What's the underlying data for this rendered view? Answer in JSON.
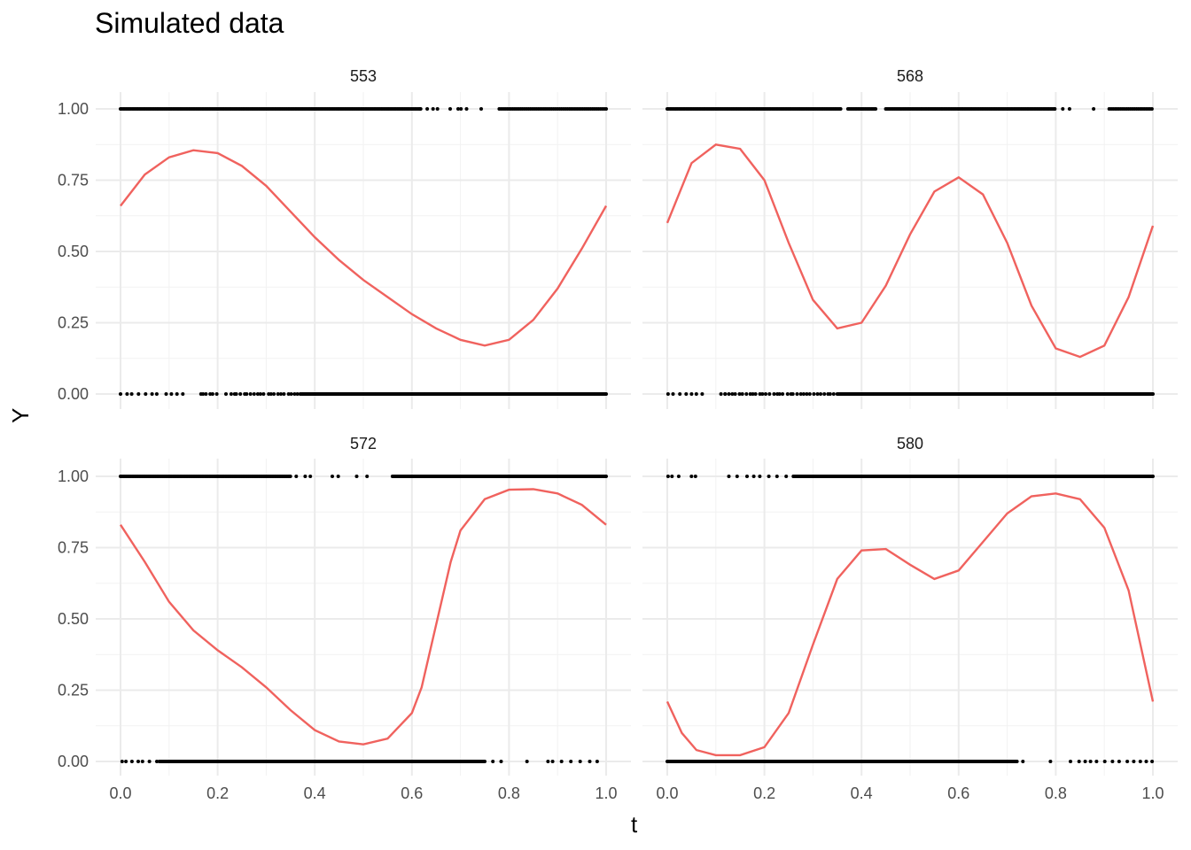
{
  "title": "Simulated data",
  "chart_data": {
    "type": "line",
    "title": "Simulated data",
    "xlabel": "t",
    "ylabel": "Y",
    "xlim": [
      0,
      1
    ],
    "ylim": [
      0,
      1
    ],
    "xticks": [
      "0.0",
      "0.2",
      "0.4",
      "0.6",
      "0.8",
      "1.0"
    ],
    "yticks": [
      "0.00",
      "0.25",
      "0.50",
      "0.75",
      "1.00"
    ],
    "grid": true,
    "curve_color": "#f0625e",
    "point_color": "#000000",
    "panels": [
      {
        "label": "553",
        "curve": {
          "x": [
            0,
            0.05,
            0.1,
            0.15,
            0.2,
            0.25,
            0.3,
            0.35,
            0.4,
            0.45,
            0.5,
            0.55,
            0.6,
            0.65,
            0.7,
            0.75,
            0.8,
            0.85,
            0.9,
            0.95,
            1.0
          ],
          "y": [
            0.66,
            0.77,
            0.83,
            0.855,
            0.845,
            0.8,
            0.73,
            0.64,
            0.55,
            0.47,
            0.4,
            0.34,
            0.28,
            0.23,
            0.19,
            0.17,
            0.19,
            0.26,
            0.37,
            0.51,
            0.66
          ]
        },
        "points": [
          {
            "y": 1,
            "ranges": [
              [
                0.0,
                0.62,
                0.003
              ],
              [
                0.62,
                0.75,
                0.012
              ],
              [
                0.78,
                1.0,
                0.004
              ]
            ],
            "gaps": [
              [
                0.66,
                0.67
              ],
              [
                0.72,
                0.735
              ],
              [
                0.75,
                0.78
              ]
            ]
          },
          {
            "y": 0,
            "ranges": [
              [
                0.0,
                0.17,
                0.013
              ],
              [
                0.17,
                0.37,
                0.007
              ],
              [
                0.37,
                1.0,
                0.002
              ]
            ],
            "gaps": [
              [
                0.14,
                0.165
              ],
              [
                0.2,
                0.215
              ]
            ]
          }
        ]
      },
      {
        "label": "568",
        "curve": {
          "x": [
            0,
            0.05,
            0.1,
            0.15,
            0.2,
            0.25,
            0.3,
            0.35,
            0.4,
            0.45,
            0.5,
            0.55,
            0.6,
            0.65,
            0.7,
            0.75,
            0.8,
            0.85,
            0.9,
            0.95,
            1.0
          ],
          "y": [
            0.6,
            0.81,
            0.875,
            0.86,
            0.75,
            0.53,
            0.33,
            0.23,
            0.25,
            0.38,
            0.56,
            0.71,
            0.76,
            0.7,
            0.53,
            0.31,
            0.16,
            0.13,
            0.17,
            0.34,
            0.59
          ]
        },
        "points": [
          {
            "y": 1,
            "ranges": [
              [
                0.0,
                0.8,
                0.003
              ],
              [
                0.8,
                0.91,
                0.016
              ],
              [
                0.91,
                1.0,
                0.004
              ]
            ],
            "gaps": [
              [
                0.36,
                0.37
              ],
              [
                0.43,
                0.45
              ],
              [
                0.84,
                0.86
              ],
              [
                0.89,
                0.91
              ]
            ]
          },
          {
            "y": 0,
            "ranges": [
              [
                0.0,
                0.12,
                0.012
              ],
              [
                0.12,
                0.35,
                0.007
              ],
              [
                0.35,
                1.0,
                0.002
              ]
            ],
            "gaps": [
              [
                0.08,
                0.1
              ]
            ]
          }
        ]
      },
      {
        "label": "572",
        "curve": {
          "x": [
            0,
            0.05,
            0.1,
            0.15,
            0.2,
            0.25,
            0.3,
            0.35,
            0.4,
            0.45,
            0.5,
            0.55,
            0.6,
            0.62,
            0.65,
            0.68,
            0.7,
            0.75,
            0.8,
            0.85,
            0.9,
            0.95,
            1.0
          ],
          "y": [
            0.83,
            0.7,
            0.56,
            0.46,
            0.39,
            0.33,
            0.26,
            0.18,
            0.11,
            0.07,
            0.06,
            0.08,
            0.17,
            0.26,
            0.48,
            0.7,
            0.81,
            0.92,
            0.953,
            0.955,
            0.94,
            0.9,
            0.83
          ]
        },
        "points": [
          {
            "y": 1,
            "ranges": [
              [
                0.0,
                0.35,
                0.003
              ],
              [
                0.35,
                0.52,
                0.014
              ],
              [
                0.56,
                1.0,
                0.002
              ]
            ],
            "gaps": [
              [
                0.4,
                0.42
              ],
              [
                0.45,
                0.48
              ],
              [
                0.51,
                0.56
              ]
            ]
          },
          {
            "y": 0,
            "ranges": [
              [
                0.0,
                0.08,
                0.012
              ],
              [
                0.08,
                0.75,
                0.002
              ],
              [
                0.75,
                1.0,
                0.018
              ]
            ],
            "gaps": [
              [
                0.8,
                0.83
              ],
              [
                0.84,
                0.88
              ]
            ]
          }
        ]
      },
      {
        "label": "580",
        "curve": {
          "x": [
            0,
            0.03,
            0.06,
            0.1,
            0.15,
            0.2,
            0.25,
            0.3,
            0.35,
            0.4,
            0.45,
            0.5,
            0.55,
            0.6,
            0.65,
            0.7,
            0.75,
            0.8,
            0.85,
            0.9,
            0.95,
            1.0
          ],
          "y": [
            0.21,
            0.1,
            0.04,
            0.022,
            0.022,
            0.05,
            0.17,
            0.41,
            0.64,
            0.74,
            0.745,
            0.69,
            0.64,
            0.67,
            0.77,
            0.87,
            0.93,
            0.94,
            0.92,
            0.82,
            0.6,
            0.21
          ]
        },
        "points": [
          {
            "y": 1,
            "ranges": [
              [
                0.0,
                0.06,
                0.012
              ],
              [
                0.13,
                0.26,
                0.016
              ],
              [
                0.26,
                1.0,
                0.002
              ]
            ],
            "gaps": [
              [
                0.03,
                0.045
              ],
              [
                0.15,
                0.16
              ]
            ]
          },
          {
            "y": 0,
            "ranges": [
              [
                0.0,
                0.72,
                0.002
              ],
              [
                0.72,
                1.0,
                0.014
              ]
            ],
            "gaps": [
              [
                0.74,
                0.78
              ],
              [
                0.8,
                0.82
              ],
              [
                0.85,
                0.86
              ]
            ]
          }
        ]
      }
    ]
  }
}
